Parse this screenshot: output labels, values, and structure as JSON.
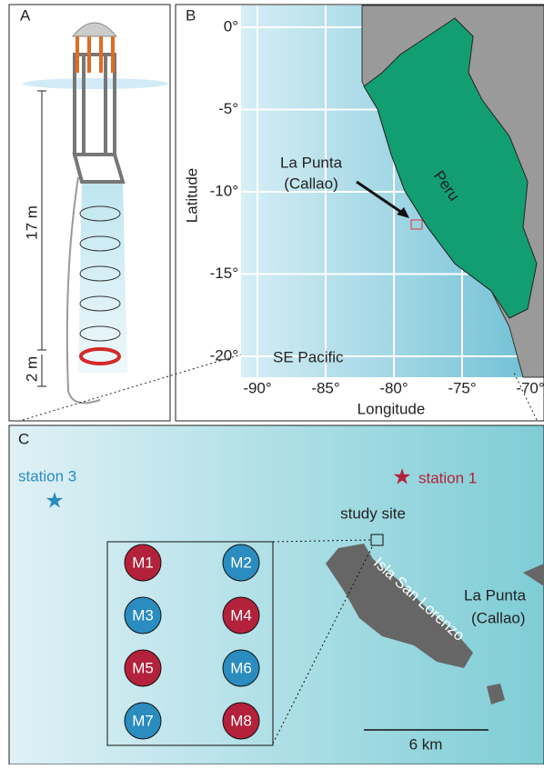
{
  "panels": {
    "a": {
      "label": "A",
      "depth_long": "17 m",
      "depth_short": "2 m"
    },
    "b": {
      "label": "B",
      "x_label": "Longitude",
      "y_label": "Latitude",
      "lat_ticks": [
        "0°",
        "-5°",
        "-10°",
        "-15°",
        "-20°"
      ],
      "lon_ticks": [
        "-90°",
        "-85°",
        "-80°",
        "-75°",
        "-70°"
      ],
      "country": "Peru",
      "sea": "SE Pacific",
      "site": [
        "La Punta",
        "(Callao)"
      ]
    },
    "c": {
      "label": "C",
      "station_3": "station 3",
      "station_1": "station 1",
      "study_site": "study site",
      "island": "Isla San Lorenzo",
      "town": [
        "La Punta",
        "(Callao)"
      ],
      "scale": "6 km",
      "moorings": [
        {
          "label": "M1",
          "color": "#b3213a"
        },
        {
          "label": "M2",
          "color": "#2a8cbf"
        },
        {
          "label": "M3",
          "color": "#2a8cbf"
        },
        {
          "label": "M4",
          "color": "#b3213a"
        },
        {
          "label": "M5",
          "color": "#b3213a"
        },
        {
          "label": "M6",
          "color": "#2a8cbf"
        },
        {
          "label": "M7",
          "color": "#2a8cbf"
        },
        {
          "label": "M8",
          "color": "#b3213a"
        }
      ]
    }
  }
}
